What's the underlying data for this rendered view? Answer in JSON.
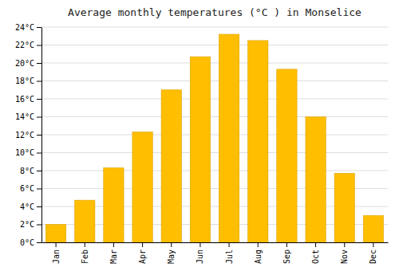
{
  "chart_data": {
    "type": "bar",
    "title": "Average monthly temperatures (°C ) in Monselice",
    "categories": [
      "Jan",
      "Feb",
      "Mar",
      "Apr",
      "May",
      "Jun",
      "Jul",
      "Aug",
      "Sep",
      "Oct",
      "Nov",
      "Dec"
    ],
    "values": [
      2.0,
      4.7,
      8.3,
      12.3,
      17.0,
      20.7,
      23.2,
      22.5,
      19.3,
      14.0,
      7.7,
      3.0
    ],
    "color": "#FFBE00",
    "ylim": [
      0,
      24
    ],
    "yticks": [
      {
        "value": 0,
        "label": "0°C"
      },
      {
        "value": 2,
        "label": "2°C"
      },
      {
        "value": 4,
        "label": "4°C"
      },
      {
        "value": 6,
        "label": "6°C"
      },
      {
        "value": 8,
        "label": "8°C"
      },
      {
        "value": 10,
        "label": "10°C"
      },
      {
        "value": 12,
        "label": "12°C"
      },
      {
        "value": 14,
        "label": "14°C"
      },
      {
        "value": 16,
        "label": "16°C"
      },
      {
        "value": 18,
        "label": "18°C"
      },
      {
        "value": 20,
        "label": "20°C"
      },
      {
        "value": 22,
        "label": "22°C"
      },
      {
        "value": 24,
        "label": "24°C"
      }
    ],
    "grid": true
  }
}
